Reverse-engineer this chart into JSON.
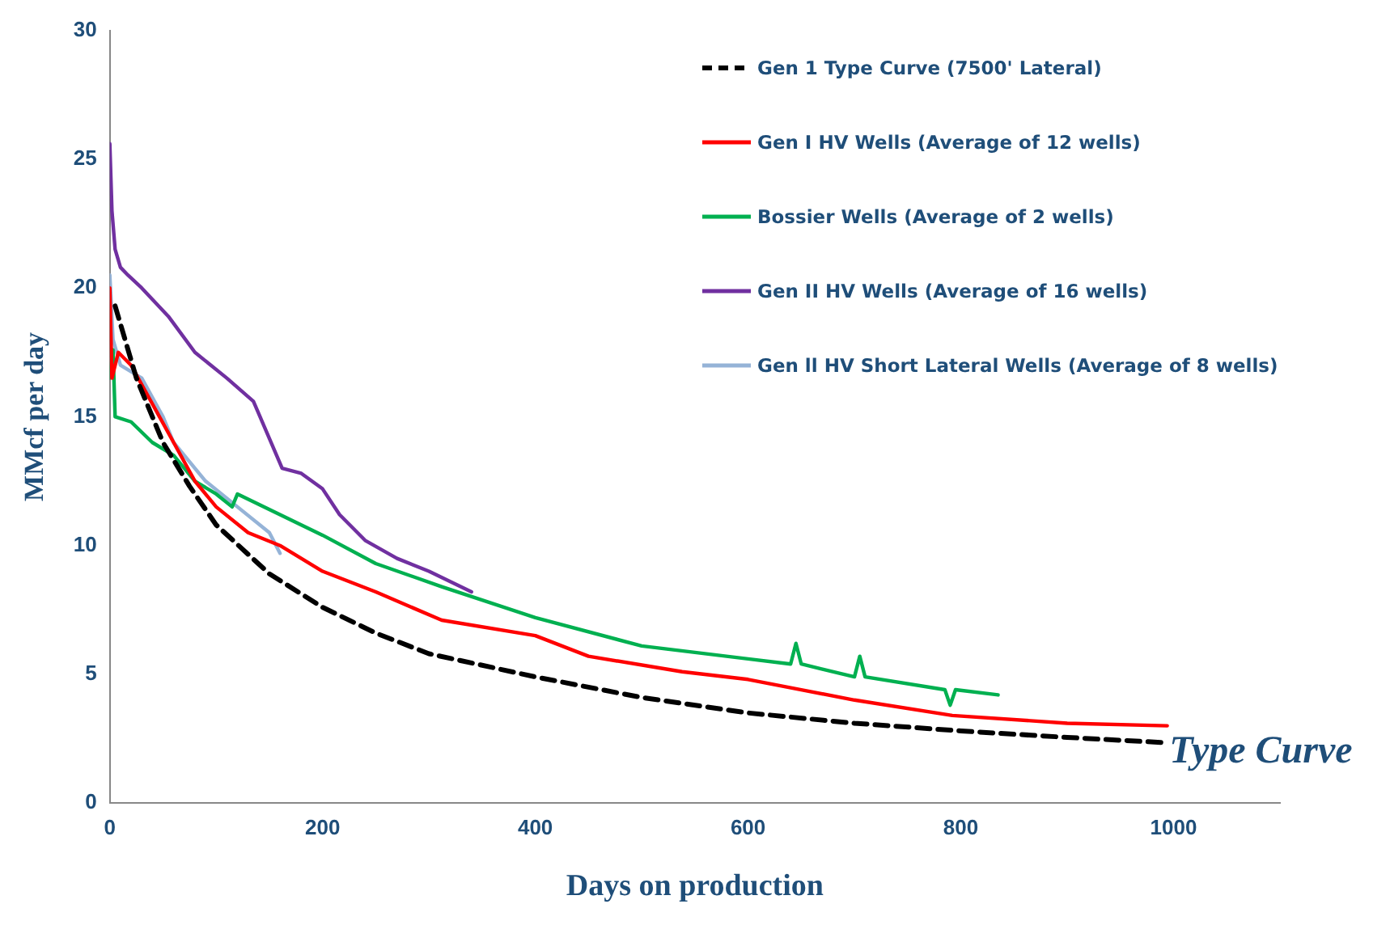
{
  "chart_data": {
    "type": "line",
    "xlabel": "Days on production",
    "ylabel": "MMcf per day",
    "xlim": [
      0,
      1100
    ],
    "xticks": [
      0,
      200,
      400,
      600,
      800,
      1000
    ],
    "ylim": [
      0,
      30
    ],
    "yticks": [
      0,
      5,
      10,
      15,
      20,
      25,
      30
    ],
    "grid": false,
    "legend": "top right",
    "marker": "none",
    "annotations": [
      {
        "text": "Type Curve",
        "x": 990,
        "y": 2.35
      }
    ],
    "series": [
      {
        "name": "Gen 1 Type Curve (7500' Lateral)",
        "color": "#000000",
        "line_style": "dashed",
        "x": [
          5,
          25,
          50,
          75,
          100,
          150,
          200,
          250,
          300,
          400,
          500,
          600,
          700,
          800,
          900,
          990
        ],
        "values": [
          19.3,
          16.5,
          14,
          12.3,
          10.8,
          8.9,
          7.6,
          6.6,
          5.8,
          4.9,
          4.1,
          3.5,
          3.1,
          2.8,
          2.55,
          2.35
        ]
      },
      {
        "name": "Gen I HV Wells (Average of 12 wells)",
        "color": "#ff0000",
        "line_style": "solid",
        "x": [
          0,
          2,
          8,
          20,
          40,
          60,
          80,
          100,
          130,
          160,
          200,
          250,
          312,
          400,
          450,
          538,
          600,
          650,
          700,
          792,
          900,
          994
        ],
        "values": [
          20,
          16.5,
          17.5,
          17,
          15.5,
          14,
          12.5,
          11.5,
          10.5,
          10,
          9,
          8.2,
          7.1,
          6.5,
          5.7,
          5.1,
          4.8,
          4.4,
          4,
          3.4,
          3.1,
          3.0
        ]
      },
      {
        "name": "Bossier Wells (Average of 2 wells)",
        "color": "#00b050",
        "line_style": "solid",
        "x": [
          0,
          3,
          5,
          20,
          40,
          60,
          80,
          100,
          115,
          120,
          200,
          250,
          312,
          400,
          500,
          600,
          640,
          645,
          650,
          700,
          705,
          710,
          785,
          790,
          795,
          835
        ],
        "values": [
          16.5,
          17.6,
          15,
          14.8,
          14,
          13.5,
          12.5,
          12,
          11.5,
          12,
          10.4,
          9.3,
          8.4,
          7.2,
          6.1,
          5.6,
          5.4,
          6.2,
          5.4,
          4.9,
          5.7,
          4.9,
          4.4,
          3.8,
          4.4,
          4.2
        ]
      },
      {
        "name": "Gen II HV Wells (Average of 16 wells)",
        "color": "#7030a0",
        "line_style": "solid",
        "x": [
          0,
          2,
          5,
          10,
          17,
          30,
          55,
          80,
          110,
          135,
          162,
          180,
          200,
          216,
          240,
          270,
          300,
          340
        ],
        "values": [
          25.6,
          23,
          21.5,
          20.8,
          20.5,
          20,
          18.9,
          17.5,
          16.5,
          15.6,
          13,
          12.8,
          12.2,
          11.2,
          10.2,
          9.5,
          9,
          8.2
        ]
      },
      {
        "name": "Gen ll HV Short Lateral Wells (Average of 8 wells)",
        "color": "#95b3d7",
        "line_style": "solid",
        "x": [
          0,
          3,
          10,
          30,
          50,
          60,
          90,
          120,
          150,
          160
        ],
        "values": [
          20.5,
          18,
          17,
          16.5,
          15,
          14,
          12.5,
          11.5,
          10.5,
          9.7
        ]
      }
    ]
  }
}
